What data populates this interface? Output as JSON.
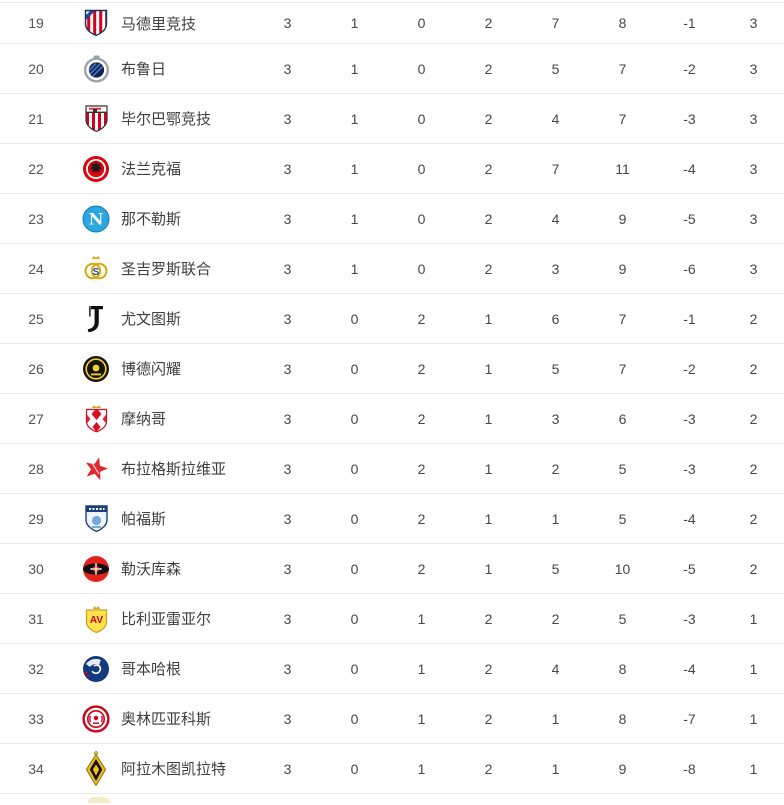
{
  "page": {
    "background": "#ffffff",
    "divider_color": "#e9e9e9",
    "text_color": "#474747"
  },
  "standings": {
    "columns_semantic": [
      "rank",
      "team-logo",
      "team-name",
      "played",
      "won",
      "drawn",
      "lost",
      "goals-for",
      "goals-against",
      "goal-difference",
      "points"
    ],
    "rows": [
      {
        "rank": "19",
        "team": "马德里竞技",
        "logo_icon": "atletico-madrid-logo",
        "played": "3",
        "won": "1",
        "drawn": "0",
        "lost": "2",
        "goals_for": "7",
        "goals_against": "8",
        "goal_diff": "-1",
        "points": "3"
      },
      {
        "rank": "20",
        "team": "布鲁日",
        "logo_icon": "club-brugge-logo",
        "played": "3",
        "won": "1",
        "drawn": "0",
        "lost": "2",
        "goals_for": "5",
        "goals_against": "7",
        "goal_diff": "-2",
        "points": "3"
      },
      {
        "rank": "21",
        "team": "毕尔巴鄂竞技",
        "logo_icon": "athletic-bilbao-logo",
        "played": "3",
        "won": "1",
        "drawn": "0",
        "lost": "2",
        "goals_for": "4",
        "goals_against": "7",
        "goal_diff": "-3",
        "points": "3"
      },
      {
        "rank": "22",
        "team": "法兰克福",
        "logo_icon": "eintracht-frankfurt-logo",
        "played": "3",
        "won": "1",
        "drawn": "0",
        "lost": "2",
        "goals_for": "7",
        "goals_against": "11",
        "goal_diff": "-4",
        "points": "3"
      },
      {
        "rank": "23",
        "team": "那不勒斯",
        "logo_icon": "napoli-logo",
        "played": "3",
        "won": "1",
        "drawn": "0",
        "lost": "2",
        "goals_for": "4",
        "goals_against": "9",
        "goal_diff": "-5",
        "points": "3"
      },
      {
        "rank": "24",
        "team": "圣吉罗斯联合",
        "logo_icon": "union-sg-logo",
        "played": "3",
        "won": "1",
        "drawn": "0",
        "lost": "2",
        "goals_for": "3",
        "goals_against": "9",
        "goal_diff": "-6",
        "points": "3"
      },
      {
        "rank": "25",
        "team": "尤文图斯",
        "logo_icon": "juventus-logo",
        "played": "3",
        "won": "0",
        "drawn": "2",
        "lost": "1",
        "goals_for": "6",
        "goals_against": "7",
        "goal_diff": "-1",
        "points": "2"
      },
      {
        "rank": "26",
        "team": "博德闪耀",
        "logo_icon": "bodo-glimt-logo",
        "played": "3",
        "won": "0",
        "drawn": "2",
        "lost": "1",
        "goals_for": "5",
        "goals_against": "7",
        "goal_diff": "-2",
        "points": "2"
      },
      {
        "rank": "27",
        "team": "摩纳哥",
        "logo_icon": "monaco-logo",
        "played": "3",
        "won": "0",
        "drawn": "2",
        "lost": "1",
        "goals_for": "3",
        "goals_against": "6",
        "goal_diff": "-3",
        "points": "2"
      },
      {
        "rank": "28",
        "team": "布拉格斯拉维亚",
        "logo_icon": "slavia-prague-logo",
        "played": "3",
        "won": "0",
        "drawn": "2",
        "lost": "1",
        "goals_for": "2",
        "goals_against": "5",
        "goal_diff": "-3",
        "points": "2"
      },
      {
        "rank": "29",
        "team": "帕福斯",
        "logo_icon": "pafos-logo",
        "played": "3",
        "won": "0",
        "drawn": "2",
        "lost": "1",
        "goals_for": "1",
        "goals_against": "5",
        "goal_diff": "-4",
        "points": "2"
      },
      {
        "rank": "30",
        "team": "勒沃库森",
        "logo_icon": "leverkusen-logo",
        "played": "3",
        "won": "0",
        "drawn": "2",
        "lost": "1",
        "goals_for": "5",
        "goals_against": "10",
        "goal_diff": "-5",
        "points": "2"
      },
      {
        "rank": "31",
        "team": "比利亚雷亚尔",
        "logo_icon": "villarreal-logo",
        "played": "3",
        "won": "0",
        "drawn": "1",
        "lost": "2",
        "goals_for": "2",
        "goals_against": "5",
        "goal_diff": "-3",
        "points": "1"
      },
      {
        "rank": "32",
        "team": "哥本哈根",
        "logo_icon": "copenhagen-logo",
        "played": "3",
        "won": "0",
        "drawn": "1",
        "lost": "2",
        "goals_for": "4",
        "goals_against": "8",
        "goal_diff": "-4",
        "points": "1"
      },
      {
        "rank": "33",
        "team": "奥林匹亚科斯",
        "logo_icon": "olympiacos-logo",
        "played": "3",
        "won": "0",
        "drawn": "1",
        "lost": "2",
        "goals_for": "1",
        "goals_against": "8",
        "goal_diff": "-7",
        "points": "1"
      },
      {
        "rank": "34",
        "team": "阿拉木图凯拉特",
        "logo_icon": "kairat-logo",
        "played": "3",
        "won": "0",
        "drawn": "1",
        "lost": "2",
        "goals_for": "1",
        "goals_against": "9",
        "goal_diff": "-8",
        "points": "1"
      }
    ]
  },
  "logos": {
    "atletico-madrid-logo": {
      "colors": [
        "#ffffff",
        "#d6001c",
        "#2b4a8c",
        "#16335c"
      ]
    },
    "club-brugge-logo": {
      "colors": [
        "#9ba1aa",
        "#ffffff",
        "#10224a",
        "#3f74c4"
      ]
    },
    "athletic-bilbao-logo": {
      "colors": [
        "#ffffff",
        "#d6001c",
        "#333333"
      ]
    },
    "eintracht-frankfurt-logo": {
      "colors": [
        "#e1000f",
        "#ffffff",
        "#1a1a1a"
      ]
    },
    "napoli-logo": {
      "colors": [
        "#2aa7e0",
        "#ffffff",
        "#1578a8"
      ]
    },
    "union-sg-logo": {
      "colors": [
        "#fffdf0",
        "#d9a614",
        "#1a4fa0"
      ]
    },
    "juventus-logo": {
      "colors": [
        "#111111"
      ]
    },
    "bodo-glimt-logo": {
      "colors": [
        "#15130a",
        "#f6d32d"
      ]
    },
    "monaco-logo": {
      "colors": [
        "#ffffff",
        "#d90f23",
        "#d9a614"
      ]
    },
    "slavia-prague-logo": {
      "colors": [
        "#e3262d",
        "#ffffff"
      ]
    },
    "pafos-logo": {
      "colors": [
        "#eef4fb",
        "#1b3f7a",
        "#7aa7d9"
      ]
    },
    "leverkusen-logo": {
      "colors": [
        "#e32219",
        "#111111",
        "#ffffff"
      ]
    },
    "villarreal-logo": {
      "colors": [
        "#ffe34d",
        "#c9a227",
        "#d0021b"
      ]
    },
    "copenhagen-logo": {
      "colors": [
        "#123a7d",
        "#ffffff",
        "#d0021b"
      ]
    },
    "olympiacos-logo": {
      "colors": [
        "#ffffff",
        "#d0021b"
      ]
    },
    "kairat-logo": {
      "colors": [
        "#f2c11c",
        "#15130a",
        "#8a6d00"
      ]
    },
    "next-row-partial-logo": {
      "colors": [
        "#f0e6b0"
      ]
    }
  }
}
